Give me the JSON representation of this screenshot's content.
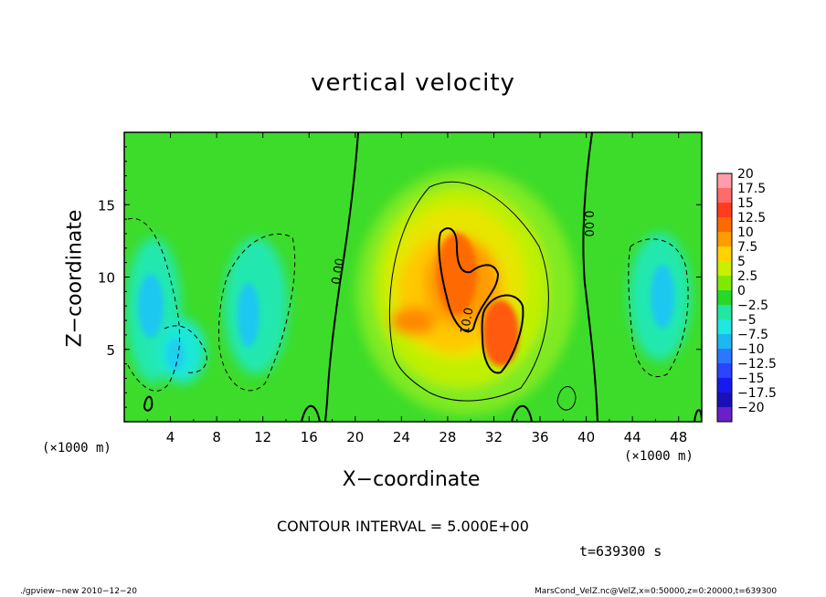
{
  "chart_data": {
    "type": "heatmap",
    "title": "vertical velocity",
    "xlabel": "X−coordinate",
    "ylabel": "Z−coordinate",
    "x_unit_label": "(×1000 m)",
    "xlim": [
      0,
      50
    ],
    "ylim": [
      0,
      20
    ],
    "x_ticks": [
      "4",
      "8",
      "12",
      "16",
      "20",
      "24",
      "28",
      "32",
      "36",
      "40",
      "44",
      "48"
    ],
    "y_ticks": [
      "5",
      "10",
      "15"
    ],
    "colorbar": {
      "labels": [
        "20",
        "17.5",
        "15",
        "12.5",
        "10",
        "7.5",
        "5",
        "2.5",
        "0",
        "−2.5",
        "−5",
        "−7.5",
        "−10",
        "−12.5",
        "−15",
        "−17.5",
        "−20"
      ],
      "colors": [
        "#ff9da8",
        "#ff6b6b",
        "#ff3d1c",
        "#ff6a00",
        "#ff9c00",
        "#ffd200",
        "#c8f000",
        "#7fea00",
        "#28d828",
        "#20e8a0",
        "#1ee8e0",
        "#1cb8f0",
        "#2a78ff",
        "#2a44ff",
        "#1818f0",
        "#1a10b8",
        "#6a1fc8"
      ]
    },
    "contour_labels": [
      "0.00",
      "0.00",
      "10.0"
    ],
    "contour_interval": "CONTOUR INTERVAL = 5.000E+00",
    "time": "t=639300 s",
    "features": [
      {
        "kind": "updraft",
        "x": 30,
        "z": 9,
        "max": 12.5
      },
      {
        "kind": "downdraft",
        "x": 2,
        "z": 8.5,
        "min": -7.5
      },
      {
        "kind": "downdraft",
        "x": 11,
        "z": 8,
        "min": -7.5
      },
      {
        "kind": "downdraft",
        "x": 46,
        "z": 9,
        "min": -7.5
      }
    ]
  },
  "footer": {
    "left": "./gpview−new   2010−12−20",
    "right": "MarsCond_VelZ.nc@VelZ,x=0:50000,z=0:20000,t=639300"
  }
}
